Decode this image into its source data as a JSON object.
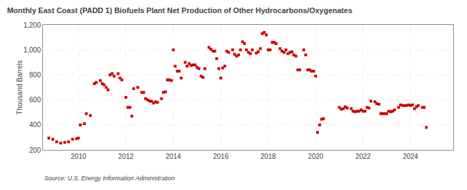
{
  "chart_data": {
    "type": "scatter",
    "title": "Monthly East Coast (PADD 1) Biofuels Plant Net Production of Other Hydrocarbons/Oxygenates",
    "y_label": "Thousand Barrels",
    "source": "Source: U.S. Energy Information Administration",
    "color": "#cc0000",
    "marker": "square",
    "grid": true,
    "xlim": [
      2008.5,
      2025.8
    ],
    "xticks": [
      2010,
      2012,
      2014,
      2016,
      2018,
      2020,
      2022,
      2024
    ],
    "ylim": [
      200,
      1200
    ],
    "yticks": [
      200,
      400,
      600,
      800,
      {
        "value": 1000,
        "label": "1,000"
      },
      {
        "value": 1200,
        "label": "1,200"
      }
    ],
    "x": [
      2008.75,
      2008.92,
      2009.08,
      2009.25,
      2009.42,
      2009.58,
      2009.75,
      2009.92,
      2010.0,
      2010.08,
      2010.25,
      2010.33,
      2010.5,
      2010.67,
      2010.75,
      2010.92,
      2011.0,
      2011.08,
      2011.17,
      2011.25,
      2011.33,
      2011.42,
      2011.5,
      2011.67,
      2011.75,
      2011.83,
      2012.0,
      2012.08,
      2012.17,
      2012.25,
      2012.33,
      2012.5,
      2012.67,
      2012.75,
      2012.83,
      2012.92,
      2013.0,
      2013.08,
      2013.17,
      2013.25,
      2013.33,
      2013.5,
      2013.58,
      2013.67,
      2013.75,
      2013.83,
      2013.92,
      2014.0,
      2014.08,
      2014.17,
      2014.25,
      2014.33,
      2014.5,
      2014.58,
      2014.67,
      2014.75,
      2014.83,
      2014.92,
      2015.0,
      2015.08,
      2015.17,
      2015.25,
      2015.33,
      2015.5,
      2015.58,
      2015.67,
      2015.75,
      2015.83,
      2015.92,
      2016.0,
      2016.08,
      2016.17,
      2016.25,
      2016.33,
      2016.5,
      2016.58,
      2016.67,
      2016.75,
      2016.83,
      2016.92,
      2017.0,
      2017.08,
      2017.17,
      2017.25,
      2017.33,
      2017.5,
      2017.58,
      2017.67,
      2017.75,
      2017.83,
      2017.92,
      2018.0,
      2018.08,
      2018.17,
      2018.25,
      2018.33,
      2018.5,
      2018.58,
      2018.67,
      2018.75,
      2018.83,
      2018.92,
      2019.0,
      2019.08,
      2019.17,
      2019.25,
      2019.33,
      2019.5,
      2019.58,
      2019.67,
      2019.75,
      2019.83,
      2019.92,
      2020.0,
      2020.08,
      2020.17,
      2020.25,
      2020.33,
      2021.0,
      2021.08,
      2021.17,
      2021.25,
      2021.33,
      2021.5,
      2021.58,
      2021.67,
      2021.75,
      2021.83,
      2021.92,
      2022.0,
      2022.08,
      2022.17,
      2022.25,
      2022.33,
      2022.5,
      2022.58,
      2022.67,
      2022.75,
      2022.83,
      2022.92,
      2023.0,
      2023.08,
      2023.17,
      2023.25,
      2023.33,
      2023.5,
      2023.58,
      2023.67,
      2023.75,
      2023.83,
      2023.92,
      2024.0,
      2024.08,
      2024.17,
      2024.25,
      2024.33,
      2024.5,
      2024.58,
      2024.67
    ],
    "values": [
      295,
      285,
      265,
      255,
      260,
      265,
      285,
      290,
      295,
      400,
      410,
      490,
      475,
      730,
      740,
      755,
      730,
      720,
      700,
      680,
      800,
      810,
      790,
      810,
      775,
      760,
      620,
      540,
      540,
      470,
      690,
      700,
      660,
      660,
      610,
      600,
      590,
      590,
      575,
      585,
      580,
      610,
      660,
      665,
      760,
      760,
      755,
      1000,
      870,
      830,
      830,
      775,
      900,
      870,
      890,
      875,
      880,
      880,
      860,
      850,
      790,
      780,
      850,
      1020,
      1005,
      990,
      990,
      930,
      850,
      775,
      855,
      870,
      990,
      980,
      1000,
      965,
      950,
      960,
      1000,
      1065,
      1050,
      1000,
      980,
      970,
      1000,
      975,
      985,
      1010,
      1130,
      1140,
      1120,
      1000,
      1000,
      1060,
      1060,
      1050,
      1010,
      990,
      980,
      1000,
      970,
      980,
      985,
      960,
      950,
      840,
      840,
      1000,
      960,
      840,
      840,
      830,
      830,
      790,
      340,
      400,
      445,
      450,
      540,
      525,
      530,
      545,
      535,
      530,
      510,
      505,
      510,
      510,
      520,
      510,
      510,
      540,
      535,
      590,
      585,
      570,
      565,
      490,
      490,
      490,
      490,
      510,
      505,
      510,
      520,
      540,
      560,
      555,
      555,
      555,
      560,
      555,
      560,
      530,
      545,
      555,
      540,
      540,
      380
    ]
  }
}
